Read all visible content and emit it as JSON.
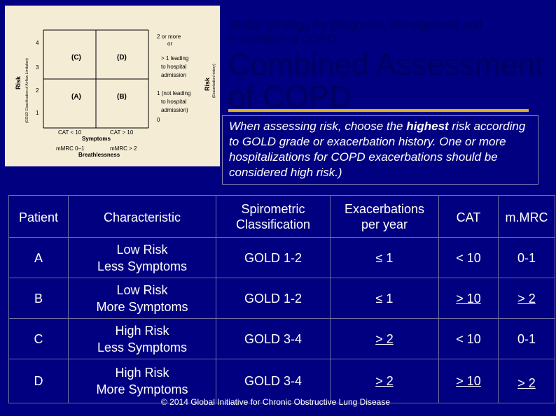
{
  "header": {
    "subtitle": "Global Strategy for Diagnosis, Management and Prevention of COPD",
    "title": "Combined Assessment of COPD"
  },
  "note": {
    "part1": "When assessing risk, choose the ",
    "highlight": "highest",
    "part2": " risk according to GOLD grade or exacerbation history. One or more hospitalizations for COPD exacerbations should be considered high risk.)"
  },
  "figure": {
    "left_axis_label": "Risk",
    "left_axis_sub": "(GOLD Classification of Airflow Limitation)",
    "right_axis_label": "Risk",
    "right_axis_sub": "(Exacerbation history)",
    "left_ticks": [
      "4",
      "3",
      "2",
      "1"
    ],
    "right_ticks": [
      "0"
    ],
    "quadrants": [
      "(C)",
      "(D)",
      "(A)",
      "(B)"
    ],
    "right_top_lines": [
      "2 or more",
      "or",
      "> 1 leading",
      "to hospital",
      "admission"
    ],
    "right_bottom_lines": [
      "1 (not leading",
      "to hospital",
      "admission)"
    ],
    "cat_left": "CAT < 10",
    "cat_right": "CAT > 10",
    "symptoms": "Symptoms",
    "mmrc_left": "mMRC 0–1",
    "mmrc_right": "mMRC > 2",
    "breathlessness": "Breathlessness"
  },
  "table": {
    "headers": [
      "Patient",
      "Characteristic",
      "Spirometric Classification",
      "Exacerbations per year",
      "CAT",
      "m.MRC"
    ],
    "header_lines": [
      [
        "Patient"
      ],
      [
        "Characteristic"
      ],
      [
        "Spirometric",
        "Classification"
      ],
      [
        "Exacerbations",
        "per year"
      ],
      [
        "CAT"
      ],
      [
        "m.MRC"
      ]
    ],
    "rows": [
      {
        "patient": "A",
        "char1": "Low Risk",
        "char2": "Less Symptoms",
        "spiro": "GOLD 1-2",
        "exac": "≤ 1",
        "cat": "< 10",
        "mmrc": "0-1"
      },
      {
        "patient": "B",
        "char1": "Low Risk",
        "char2": "More Symptoms",
        "spiro": "GOLD 1-2",
        "exac": "≤ 1",
        "cat": "> 10",
        "mmrc": "> 2"
      },
      {
        "patient": "C",
        "char1": "High Risk",
        "char2": "Less Symptoms",
        "spiro": "GOLD 3-4",
        "exac": "> 2",
        "cat": "< 10",
        "mmrc": "0-1"
      },
      {
        "patient": "D",
        "char1": "High Risk",
        "char2": "More Symptoms",
        "spiro": "GOLD 3-4",
        "exac": "> 2",
        "cat": "> 10",
        "mmrc": "> 2"
      }
    ]
  },
  "footer": "© 2014 Global Initiative for Chronic Obstructive Lung Disease",
  "colors": {
    "background": "#000080",
    "title_text": "#000060",
    "title_rule": "#d9b21d",
    "figure_bg": "#f5ecd6"
  }
}
